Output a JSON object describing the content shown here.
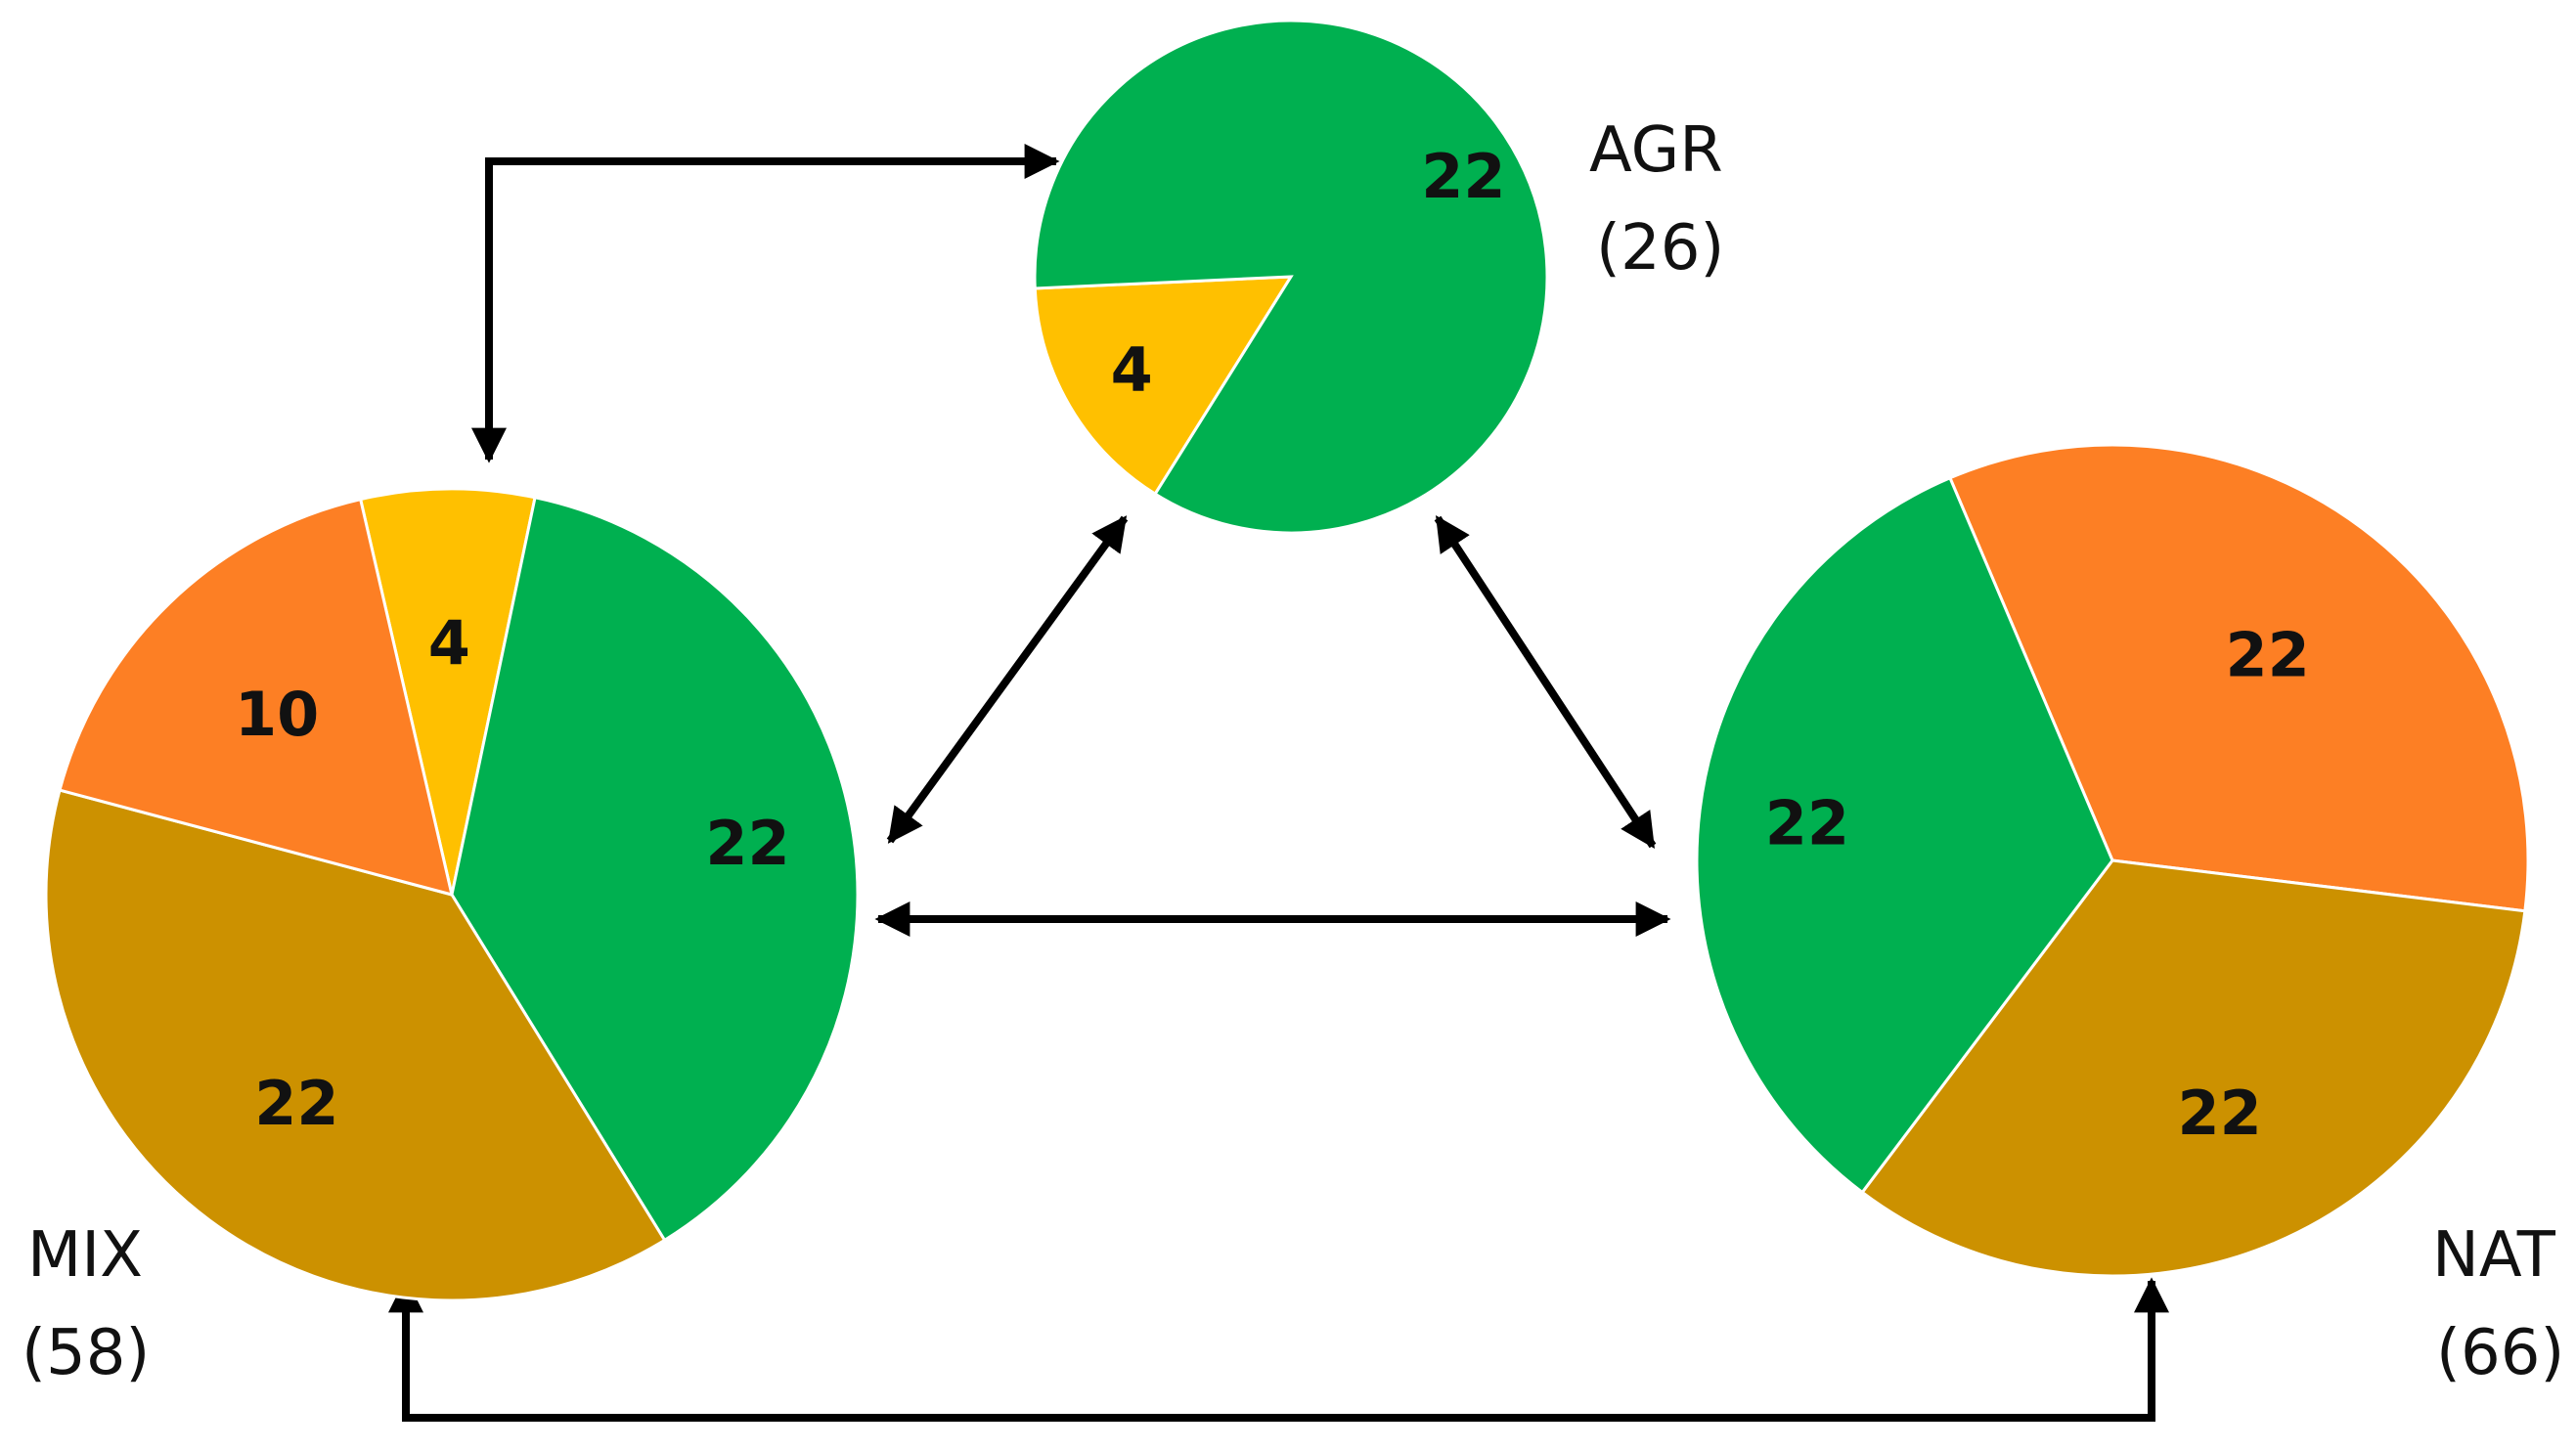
{
  "chart_data": [
    {
      "type": "pie",
      "id": "agr",
      "title": "AGR",
      "subtitle": "(26)",
      "slices": [
        {
          "value": 4,
          "label": "4",
          "color": "#ffc000"
        },
        {
          "value": 22,
          "label": "22",
          "color": "#00b050"
        }
      ]
    },
    {
      "type": "pie",
      "id": "mix",
      "title": "MIX",
      "subtitle": "(58)",
      "slices": [
        {
          "value": 4,
          "label": "4",
          "color": "#ffc000"
        },
        {
          "value": 22,
          "label": "22",
          "color": "#00b050"
        },
        {
          "value": 22,
          "label": "22",
          "color": "#cc9100"
        },
        {
          "value": 10,
          "label": "10",
          "color": "#fd7f24"
        }
      ]
    },
    {
      "type": "pie",
      "id": "nat",
      "title": "NAT",
      "subtitle": "(66)",
      "slices": [
        {
          "value": 22,
          "label": "22",
          "color": "#fd7f24"
        },
        {
          "value": 22,
          "label": "22",
          "color": "#cc9100"
        },
        {
          "value": 22,
          "label": "22",
          "color": "#00b050"
        }
      ]
    }
  ]
}
